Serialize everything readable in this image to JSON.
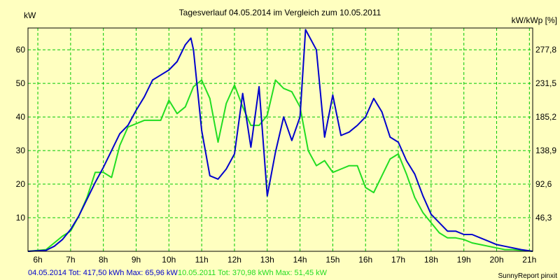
{
  "colors": {
    "background": "#ffffc0",
    "plot_border": "#000000",
    "grid": "#00c800",
    "series_2014": "#0000cc",
    "series_2011": "#22dd22",
    "text": "#000000"
  },
  "chart_data": {
    "type": "line",
    "title": "Tagesverlauf 04.05.2014 im Vergleich zum 10.05.2011",
    "ylabel_left": "kW",
    "ylabel_right": "kW/kWp [%]",
    "xlim": [
      5.7,
      21.1
    ],
    "ylim": [
      0,
      66.5
    ],
    "x_ticks": [
      {
        "value": 6,
        "label": "6h"
      },
      {
        "value": 7,
        "label": "7h"
      },
      {
        "value": 8,
        "label": "8h"
      },
      {
        "value": 9,
        "label": "9h"
      },
      {
        "value": 10,
        "label": "10h"
      },
      {
        "value": 11,
        "label": "11h"
      },
      {
        "value": 12,
        "label": "12h"
      },
      {
        "value": 13,
        "label": "13h"
      },
      {
        "value": 14,
        "label": "14h"
      },
      {
        "value": 15,
        "label": "15h"
      },
      {
        "value": 16,
        "label": "16h"
      },
      {
        "value": 17,
        "label": "17h"
      },
      {
        "value": 18,
        "label": "18h"
      },
      {
        "value": 19,
        "label": "19h"
      },
      {
        "value": 20,
        "label": "20h"
      },
      {
        "value": 21,
        "label": "21h"
      }
    ],
    "y_ticks_left": [
      {
        "value": 10,
        "label": "10"
      },
      {
        "value": 20,
        "label": "20"
      },
      {
        "value": 30,
        "label": "30"
      },
      {
        "value": 40,
        "label": "40"
      },
      {
        "value": 50,
        "label": "50"
      },
      {
        "value": 60,
        "label": "60"
      }
    ],
    "y_ticks_right": [
      {
        "value": 10,
        "label": "46,3"
      },
      {
        "value": 20,
        "label": "92,6"
      },
      {
        "value": 30,
        "label": "138,9"
      },
      {
        "value": 40,
        "label": "185,2"
      },
      {
        "value": 50,
        "label": "231,5"
      },
      {
        "value": 60,
        "label": "277,8"
      }
    ],
    "grid": true,
    "series": [
      {
        "key": "2014",
        "x": [
          5.7,
          6.25,
          6.5,
          6.75,
          7.0,
          7.25,
          7.5,
          7.75,
          8.0,
          8.25,
          8.5,
          8.75,
          9.0,
          9.25,
          9.5,
          9.75,
          10.0,
          10.25,
          10.5,
          10.67,
          10.75,
          11.0,
          11.25,
          11.5,
          11.75,
          12.0,
          12.25,
          12.5,
          12.75,
          13.0,
          13.25,
          13.5,
          13.75,
          14.0,
          14.17,
          14.5,
          14.75,
          15.0,
          15.25,
          15.5,
          15.75,
          16.0,
          16.25,
          16.5,
          16.75,
          17.0,
          17.25,
          17.5,
          17.75,
          18.0,
          18.25,
          18.5,
          18.75,
          19.0,
          19.25,
          19.5,
          19.75,
          20.0,
          20.25,
          20.5,
          20.75,
          21.1
        ],
        "y": [
          0,
          0.3,
          1.5,
          3.5,
          6.5,
          10.5,
          15.5,
          20.5,
          25.0,
          30.0,
          35.0,
          37.5,
          42.0,
          46.0,
          51.0,
          52.5,
          54.0,
          56.5,
          61.5,
          63.5,
          60.0,
          36.0,
          22.5,
          21.5,
          24.5,
          29.0,
          47.0,
          31.0,
          49.0,
          16.5,
          29.5,
          40.0,
          33.0,
          40.0,
          66.0,
          60.0,
          34.0,
          46.5,
          34.5,
          35.5,
          37.5,
          40.0,
          45.5,
          41.5,
          34.0,
          32.5,
          27.0,
          23.0,
          16.5,
          11.0,
          8.5,
          6.0,
          6.0,
          5.0,
          5.0,
          4.0,
          3.0,
          2.0,
          1.5,
          1.0,
          0.5,
          0
        ]
      },
      {
        "key": "2011",
        "x": [
          5.7,
          6.25,
          6.5,
          6.75,
          7.0,
          7.25,
          7.5,
          7.75,
          8.0,
          8.25,
          8.5,
          8.75,
          9.0,
          9.25,
          9.5,
          9.75,
          10.0,
          10.25,
          10.5,
          10.75,
          11.0,
          11.25,
          11.5,
          11.75,
          12.0,
          12.25,
          12.5,
          12.75,
          13.0,
          13.25,
          13.5,
          13.75,
          14.0,
          14.25,
          14.5,
          14.75,
          15.0,
          15.25,
          15.5,
          15.75,
          16.0,
          16.25,
          16.5,
          16.75,
          17.0,
          17.25,
          17.5,
          17.75,
          18.0,
          18.25,
          18.5,
          18.75,
          19.0,
          19.25,
          19.5,
          19.75,
          20.0,
          20.25,
          20.5,
          20.75,
          21.1
        ],
        "y": [
          0,
          0.5,
          2.5,
          4.5,
          6.0,
          10.5,
          16.0,
          23.5,
          23.5,
          22.0,
          31.5,
          37.0,
          38.0,
          39.0,
          39.0,
          39.0,
          45.0,
          41.0,
          43.0,
          49.0,
          51.0,
          45.5,
          32.5,
          44.0,
          49.5,
          43.0,
          37.5,
          37.5,
          40.5,
          51.0,
          48.5,
          47.5,
          43.0,
          30.0,
          25.5,
          27.0,
          23.5,
          24.5,
          25.5,
          25.5,
          19.0,
          17.5,
          22.5,
          27.5,
          29.0,
          23.0,
          16.0,
          11.5,
          8.5,
          5.5,
          4.0,
          4.0,
          3.5,
          2.5,
          2.0,
          1.5,
          1.0,
          0.5,
          0.5,
          0.3,
          0
        ]
      }
    ],
    "legend": [
      {
        "key": "2014",
        "text": "04.05.2014 Tot: 417,50 kWh Max: 65,96 kW"
      },
      {
        "key": "2011",
        "text": "10.05.2011 Tot: 370,98 kWh Max: 51,45 kW"
      }
    ],
    "credit": "SunnyReport pinxit"
  }
}
